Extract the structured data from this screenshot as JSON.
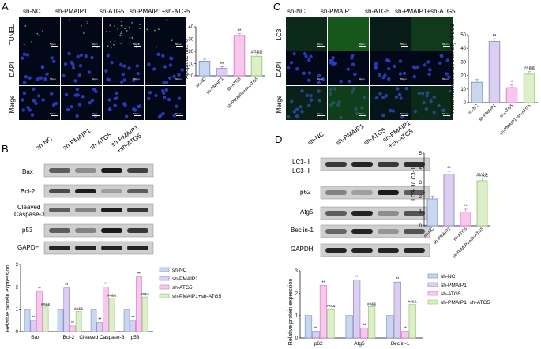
{
  "colors": {
    "ncFill": "#c9d7ee",
    "ncStroke": "#6d8fc9",
    "pmFill": "#d9cfee",
    "pmStroke": "#9278c8",
    "atFill": "#f7c8eb",
    "atStroke": "#d96bc4",
    "pmatFill": "#dcefc9",
    "pmatStroke": "#8cc46a",
    "dapiBlue": "#2b3fc9",
    "lc3Green": "#1e6b1e",
    "micro": "#030818"
  },
  "groups": [
    "sh-NC",
    "sh-PMAIP1",
    "sh-ATG5",
    "sh-PMAIP1+sh-ATG5"
  ],
  "panelA": {
    "letter": "A",
    "cols": [
      "sh-NC",
      "sh-PMAIP1",
      "sh-ATG5",
      "sh-PMAIP1+sh-ATG5"
    ],
    "rows": [
      "TUNEL",
      "DAPI",
      "Merge"
    ],
    "scale_label": "50μm",
    "chart": {
      "ylabel": "Apoptotic rate%",
      "ticks": [
        "0",
        "10",
        "20",
        "30",
        "40"
      ],
      "categories": [
        "sh-NC",
        "sh-PMAIP1",
        "sh-ATG5",
        "sh-PMAIP1+sh-ATG5"
      ],
      "sig": [
        "",
        "**",
        "**",
        "##&&"
      ]
    }
  },
  "panelB": {
    "letter": "B",
    "cols": [
      "sh-NC",
      "sh-PMAIP1",
      "sh-ATG5",
      "sh-PMAIP1",
      "+sh-ATG5"
    ],
    "bands": [
      "Bax",
      "Bcl-2",
      "Cleaved",
      "Caspase-3",
      "p53",
      "GAPDH"
    ],
    "chart": {
      "ylabel": "Relative protein expression",
      "ticks": [
        "0",
        "1",
        "2",
        "3"
      ],
      "categories": [
        "Bax",
        "Bcl-2",
        "Cleaved Caspase-3",
        "p53"
      ],
      "legend": [
        "sh-NC",
        "sh-PMAIP1",
        "sh-ATG5",
        "sh-PMAIP1+sh-ATG5"
      ],
      "sig_star": "**",
      "sig_hash": "##&&"
    }
  },
  "panelC": {
    "letter": "C",
    "cols": [
      "sh-NC",
      "sh-PMAIP1",
      "sh-ATG5",
      "sh-PMAIP1+sh-ATG5"
    ],
    "rows": [
      "LC3",
      "DAPI",
      "Merge"
    ],
    "scale_label": "50μm",
    "chart": {
      "ylabel": "Immunofluorescence intensity of LC3",
      "ticks": [
        "0",
        "10",
        "20",
        "30",
        "40",
        "50"
      ],
      "categories": [
        "sh-NC",
        "sh-PMAIP1",
        "sh-ATG5",
        "sh-PMAIP1+sh-ATG5"
      ],
      "sig": [
        "",
        "**",
        "*",
        "##&&"
      ]
    }
  },
  "panelD": {
    "letter": "D",
    "cols": [
      "sh-NC",
      "sh-PMAIP1",
      "sh-ATG5",
      "sh-PMAIP1",
      "+sh-ATG5"
    ],
    "bands": [
      "LC3- Ⅰ",
      "LC3- Ⅱ",
      "p62",
      "Atg5",
      "Beclin-1",
      "GAPDH"
    ],
    "chart1": {
      "ylabel": "LC3- Ⅱ/LC3- Ⅰ",
      "ticks": [
        "0",
        "1",
        "2",
        "3",
        "4",
        "5"
      ],
      "categories": [
        "sh-NC",
        "sh-PMAIP1",
        "sh-ATG5",
        "sh-PMAIP1+sh-ATG5"
      ],
      "sig": [
        "",
        "**",
        "**",
        "##&&"
      ]
    },
    "chart2": {
      "ylabel": "Relative protein expression",
      "ticks": [
        "0",
        "1",
        "2",
        "3"
      ],
      "categories": [
        "p62",
        "Atg5",
        "Beclin-1"
      ],
      "legend": [
        "sh-NC",
        "sh-PMAIP1",
        "sh-ATG5",
        "sh-PMAIP1+sh-ATG5"
      ],
      "sig_star": "**",
      "sig_hash": "##&&"
    }
  },
  "chart_data": [
    {
      "type": "bar",
      "categories": [
        "sh-NC",
        "sh-PMAIP1",
        "sh-ATG5",
        "sh-PMAIP1+sh-ATG5"
      ],
      "values": [
        12,
        6,
        33,
        16
      ],
      "ylabel": "Apoptotic rate%",
      "ylim": [
        0,
        40
      ]
    },
    {
      "type": "bar",
      "categories": [
        "Bax",
        "Bcl-2",
        "Cleaved Caspase-3",
        "p53"
      ],
      "series": [
        {
          "name": "sh-NC",
          "values": [
            1.0,
            1.0,
            1.0,
            1.0
          ]
        },
        {
          "name": "sh-PMAIP1",
          "values": [
            0.5,
            1.95,
            0.4,
            0.5
          ]
        },
        {
          "name": "sh-ATG5",
          "values": [
            1.8,
            0.25,
            2.0,
            2.45
          ]
        },
        {
          "name": "sh-PMAIP1+sh-ATG5",
          "values": [
            1.1,
            0.9,
            1.5,
            1.55
          ]
        }
      ],
      "ylabel": "Relative protein expression",
      "ylim": [
        0,
        3
      ]
    },
    {
      "type": "bar",
      "categories": [
        "sh-NC",
        "sh-PMAIP1",
        "sh-ATG5",
        "sh-PMAIP1+sh-ATG5"
      ],
      "values": [
        15,
        45,
        11,
        21
      ],
      "ylabel": "Immunofluorescence intensity of LC3",
      "ylim": [
        0,
        50
      ]
    },
    {
      "type": "bar",
      "categories": [
        "sh-NC",
        "sh-PMAIP1",
        "sh-ATG5",
        "sh-PMAIP1+sh-ATG5"
      ],
      "values": [
        1.85,
        3.55,
        0.95,
        3.1
      ],
      "ylabel": "LC3- Ⅱ/LC3- Ⅰ",
      "ylim": [
        0,
        5
      ]
    },
    {
      "type": "bar",
      "categories": [
        "p62",
        "Atg5",
        "Beclin-1"
      ],
      "series": [
        {
          "name": "sh-NC",
          "values": [
            1.0,
            1.0,
            1.0
          ]
        },
        {
          "name": "sh-PMAIP1",
          "values": [
            0.3,
            2.6,
            2.5
          ]
        },
        {
          "name": "sh-ATG5",
          "values": [
            2.35,
            0.45,
            0.3
          ]
        },
        {
          "name": "sh-PMAIP1+sh-ATG5",
          "values": [
            1.3,
            1.4,
            1.5
          ]
        }
      ],
      "ylabel": "Relative protein expression",
      "ylim": [
        0,
        3
      ]
    }
  ]
}
